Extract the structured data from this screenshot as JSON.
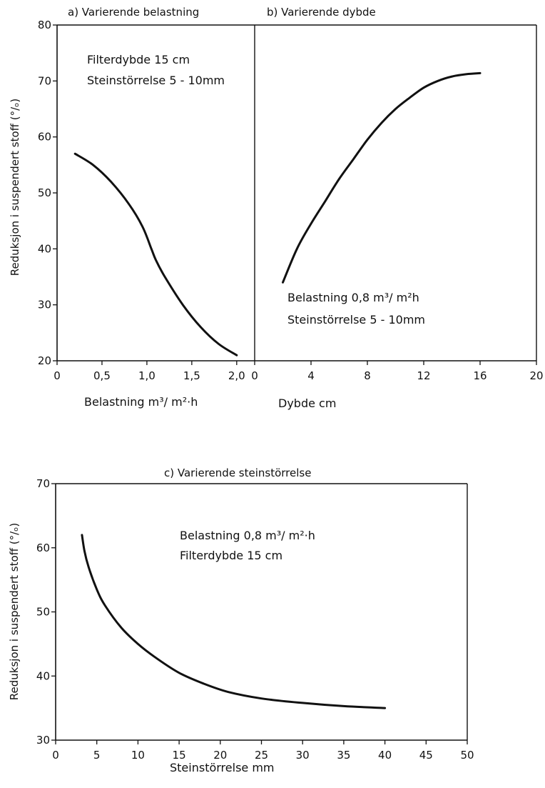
{
  "figure": {
    "ylabel_top": "Reduksjon  i  suspendert  stoff  (°/ₒ)",
    "ylabel_bottom": "Reduksjon  i  suspendert stoff  (°/ₒ)"
  },
  "chart_data": [
    {
      "type": "line",
      "title": "a) Varierende belastning",
      "xlabel": "Belastning  m³/ m²·h",
      "ylabel": "Reduksjon  i  suspendert  stoff  (°/ₒ)",
      "xlim": [
        0,
        2.2
      ],
      "ylim": [
        20,
        80
      ],
      "xticks": [
        0,
        0.5,
        1.0,
        1.5,
        2.0
      ],
      "xtick_labels": [
        "0",
        "0,5",
        "1,0",
        "1,5",
        "2,0"
      ],
      "yticks": [
        20,
        30,
        40,
        50,
        60,
        70,
        80
      ],
      "ytick_labels": [
        "20",
        "30",
        "40",
        "50",
        "60",
        "70",
        "80"
      ],
      "annotations": [
        "Filterdybde  15 cm",
        "Steinstörrelse 5 - 10mm"
      ],
      "series": [
        {
          "x": [
            0.2,
            0.4,
            0.6,
            0.8,
            0.95,
            1.05,
            1.1,
            1.2,
            1.4,
            1.6,
            1.8,
            2.0
          ],
          "y": [
            57,
            55,
            52,
            48,
            44,
            40,
            38,
            35,
            30,
            26,
            23,
            21
          ]
        }
      ]
    },
    {
      "type": "line",
      "title": "b) Varierende dybde",
      "xlabel": "Dybde  cm",
      "ylabel": "",
      "xlim": [
        0,
        20
      ],
      "ylim": [
        20,
        80
      ],
      "xticks": [
        0,
        4,
        8,
        12,
        16,
        20
      ],
      "xtick_labels": [
        "0",
        "4",
        "8",
        "12",
        "16",
        "20"
      ],
      "annotations": [
        "Belastning  0,8  m³/ m²h",
        "Steinstörrelse  5 - 10mm"
      ],
      "series": [
        {
          "x": [
            2,
            3,
            4,
            5,
            6,
            7,
            8,
            9,
            10,
            11,
            12,
            13,
            14,
            15,
            16
          ],
          "y": [
            34,
            40,
            44.5,
            48.5,
            52.5,
            56,
            59.5,
            62.5,
            65,
            67,
            68.8,
            70,
            70.8,
            71.2,
            71.4
          ]
        }
      ]
    },
    {
      "type": "line",
      "title": "c) Varierende    steinstörrelse",
      "xlabel": "Steinstörrelse    mm",
      "ylabel": "Reduksjon  i  suspendert stoff  (°/ₒ)",
      "xlim": [
        0,
        50
      ],
      "ylim": [
        30,
        70
      ],
      "xticks": [
        0,
        5,
        10,
        15,
        20,
        25,
        30,
        35,
        40,
        45,
        50
      ],
      "xtick_labels": [
        "0",
        "5",
        "10",
        "15",
        "20",
        "25",
        "30",
        "35",
        "40",
        "45",
        "50"
      ],
      "yticks": [
        30,
        40,
        50,
        60,
        70
      ],
      "ytick_labels": [
        "30",
        "40",
        "50",
        "60",
        "70"
      ],
      "annotations": [
        "Belastning   0,8 m³/ m²·h",
        "Filterdybde   15 cm"
      ],
      "series": [
        {
          "x": [
            3.2,
            3.5,
            4,
            5,
            6,
            8,
            10,
            12,
            15,
            18,
            21,
            25,
            30,
            35,
            40
          ],
          "y": [
            62,
            59.5,
            57,
            53.5,
            51,
            47.5,
            45,
            43,
            40.5,
            38.8,
            37.5,
            36.5,
            35.8,
            35.3,
            35
          ]
        }
      ]
    }
  ]
}
